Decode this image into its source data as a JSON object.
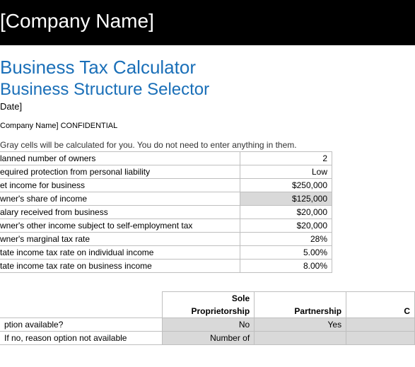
{
  "banner": "[Company Name]",
  "title1": "Business Tax Calculator",
  "title2": "Business Structure Selector",
  "date": "Date]",
  "confidential": "Company Name] CONFIDENTIAL",
  "hint": "Gray cells will be calculated for you. You do not need to enter anything in them.",
  "inputs": [
    {
      "label": "lanned number of owners",
      "value": "2",
      "calc": false
    },
    {
      "label": "equired protection from personal liability",
      "value": "Low",
      "calc": false
    },
    {
      "label": "et income for business",
      "value": "$250,000",
      "calc": false
    },
    {
      "label": "wner's share of income",
      "value": "$125,000",
      "calc": true
    },
    {
      "label": "alary received from business",
      "value": "$20,000",
      "calc": false
    },
    {
      "label": "wner's other income subject to self-employment tax",
      "value": "$20,000",
      "calc": false
    },
    {
      "label": "wner's marginal tax rate",
      "value": "28%",
      "calc": false
    },
    {
      "label": "tate income tax rate on individual income",
      "value": "5.00%",
      "calc": false
    },
    {
      "label": "tate income tax rate on business income",
      "value": "8.00%",
      "calc": false
    }
  ],
  "options": {
    "col1_line1": "Sole",
    "col1_line2": "Proprietorship",
    "col2": "Partnership",
    "col3": "C",
    "row1_label": "ption available?",
    "row1_c1": "No",
    "row1_c2": "Yes",
    "row2_label": "  If no, reason option not available",
    "row2_c1": "Number of"
  },
  "colors": {
    "banner_bg": "#000000",
    "banner_fg": "#ffffff",
    "heading_fg": "#1a6fb8",
    "calc_bg": "#d9d9d9",
    "border": "#bfbfbf"
  }
}
